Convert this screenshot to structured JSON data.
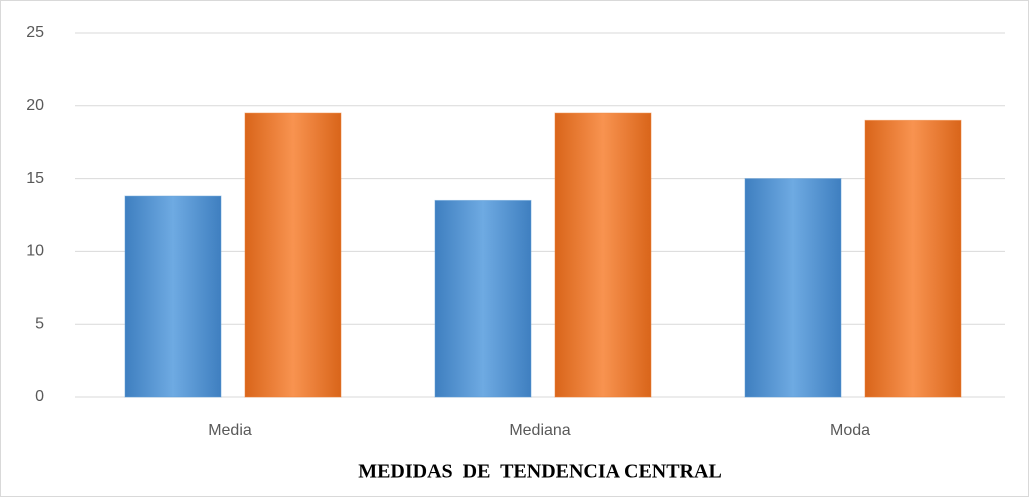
{
  "chart_data": {
    "type": "bar",
    "title": "MEDIDAS  DE  TENDENCIA CENTRAL",
    "categories": [
      "Media",
      "Mediana",
      "Moda"
    ],
    "series": [
      {
        "color": "#5b9bd5",
        "values": [
          13.8,
          13.5,
          15
        ]
      },
      {
        "color": "#ed7d31",
        "values": [
          19.5,
          19.5,
          19
        ]
      }
    ],
    "ylim": [
      0,
      25
    ],
    "yticks": [
      0,
      5,
      10,
      15,
      20,
      25
    ],
    "grid": true
  }
}
